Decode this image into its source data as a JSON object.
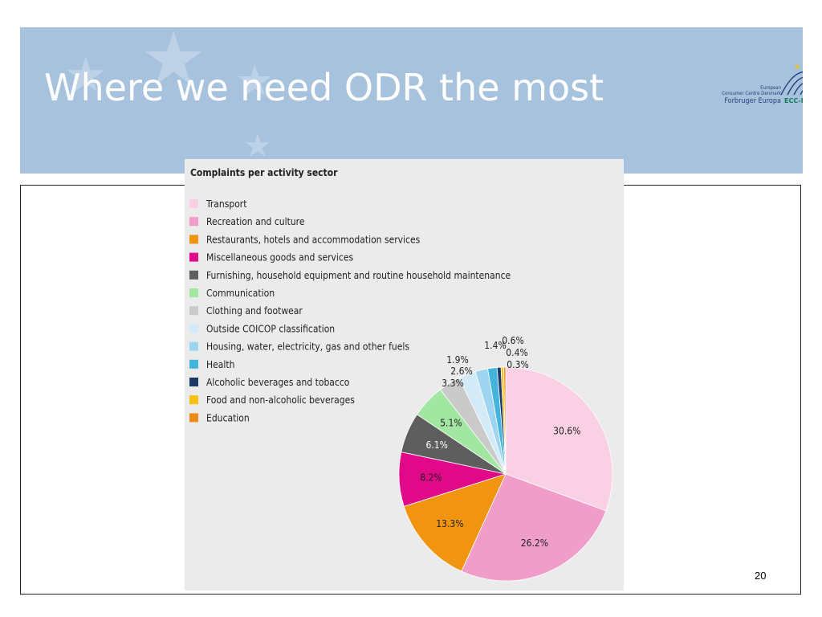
{
  "slide": {
    "title": "Where we need ODR the most",
    "page_number": "20"
  },
  "logo": {
    "line1": "European",
    "line2": "Consumer Centre Denmark",
    "line3": "Forbruger Europa",
    "brand": "ECC-Net"
  },
  "colors": {
    "banner": "#a7c2dc",
    "chart_background": "#ebebeb"
  },
  "chart_data": {
    "type": "pie",
    "title": "Complaints per activity sector",
    "legend_position": "left",
    "slices": [
      {
        "name": "Transport",
        "value": 30.6,
        "label": "30.6%",
        "color": "#f9d0e4"
      },
      {
        "name": "Recreation and culture",
        "value": 26.2,
        "label": "26.2%",
        "color": "#f09dc9"
      },
      {
        "name": "Restaurants, hotels and accommodation services",
        "value": 13.3,
        "label": "13.3%",
        "color": "#f19410"
      },
      {
        "name": "Miscellaneous goods and services",
        "value": 8.2,
        "label": "8.2%",
        "color": "#e2088a"
      },
      {
        "name": "Furnishing, household equipment and routine household maintenance",
        "value": 6.1,
        "label": "6.1%",
        "color": "#5e5e5e"
      },
      {
        "name": "Communication",
        "value": 5.1,
        "label": "5.1%",
        "color": "#a1e6a1"
      },
      {
        "name": "Clothing and footwear",
        "value": 3.3,
        "label": "3.3%",
        "color": "#cacaca"
      },
      {
        "name": "Outside COICOP classification",
        "value": 2.6,
        "label": "2.6%",
        "color": "#d3ebf8"
      },
      {
        "name": "Housing, water, electricity, gas and other fuels",
        "value": 1.9,
        "label": "1.9%",
        "color": "#9dd5f0"
      },
      {
        "name": "Health",
        "value": 1.4,
        "label": "1.4%",
        "color": "#45b4dd"
      },
      {
        "name": "Alcoholic beverages and tobacco",
        "value": 0.6,
        "label": "0.6%",
        "color": "#1d3966"
      },
      {
        "name": "Food and non-alcoholic beverages",
        "value": 0.4,
        "label": "0.4%",
        "color": "#f7c012"
      },
      {
        "name": "Education",
        "value": 0.3,
        "label": "0.3%",
        "color": "#ee8a1a"
      }
    ]
  }
}
